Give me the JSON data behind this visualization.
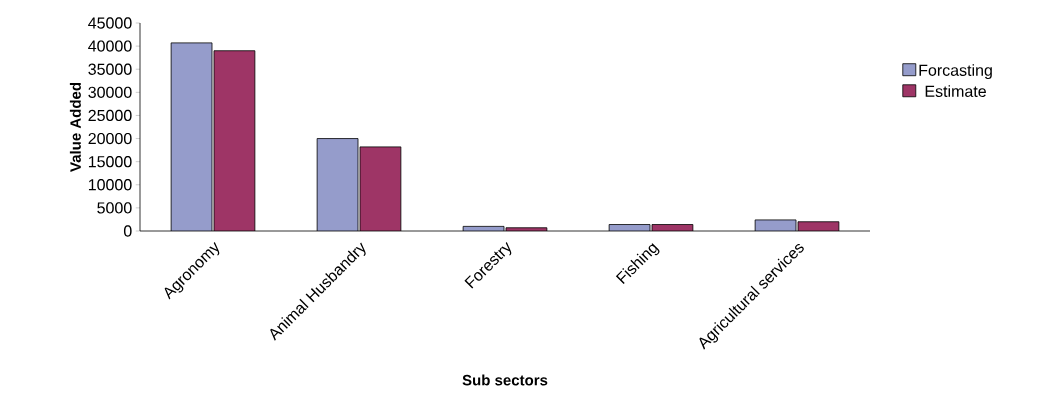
{
  "chart_data": {
    "type": "bar",
    "xlabel": "Sub sectors",
    "ylabel": "Value Added",
    "categories": [
      "Agronomy",
      "Animal Husbandry",
      "Forestry",
      "Fishing",
      "Agricultural services"
    ],
    "series": [
      {
        "name": "Forcasting",
        "color": "#959ccb",
        "values": [
          40700,
          20000,
          1000,
          1400,
          2400
        ]
      },
      {
        "name": "Estimate",
        "color": "#9e3566",
        "values": [
          39000,
          18200,
          700,
          1400,
          2000
        ]
      }
    ],
    "ylim": [
      0,
      45000
    ],
    "yticks": [
      0,
      5000,
      10000,
      15000,
      20000,
      25000,
      30000,
      35000,
      40000,
      45000
    ],
    "grid": false,
    "legend": "right"
  }
}
